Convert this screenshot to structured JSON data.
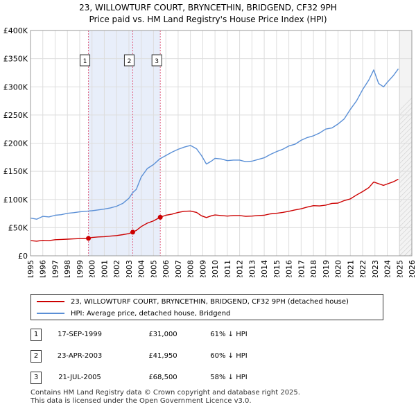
{
  "title": "23, WILLOWTURF COURT, BRYNCETHIN, BRIDGEND, CF32 9PH",
  "subtitle": "Price paid vs. HM Land Registry's House Price Index (HPI)",
  "chart_data": {
    "type": "line",
    "title": "23, WILLOWTURF COURT, BRYNCETHIN, BRIDGEND, CF32 9PH",
    "xlabel": "",
    "ylabel": "",
    "xlim": [
      1995,
      2026
    ],
    "ylim": [
      0,
      400000
    ],
    "yticks": [
      {
        "value": 0,
        "label": "£0"
      },
      {
        "value": 50000,
        "label": "£50K"
      },
      {
        "value": 100000,
        "label": "£100K"
      },
      {
        "value": 150000,
        "label": "£150K"
      },
      {
        "value": 200000,
        "label": "£200K"
      },
      {
        "value": 250000,
        "label": "£250K"
      },
      {
        "value": 300000,
        "label": "£300K"
      },
      {
        "value": 350000,
        "label": "£350K"
      },
      {
        "value": 400000,
        "label": "£400K"
      }
    ],
    "xticks": [
      "1995",
      "1996",
      "1997",
      "1998",
      "1999",
      "2000",
      "2001",
      "2002",
      "2003",
      "2004",
      "2005",
      "2006",
      "2007",
      "2008",
      "2009",
      "2010",
      "2011",
      "2012",
      "2013",
      "2014",
      "2015",
      "2016",
      "2017",
      "2018",
      "2019",
      "2020",
      "2021",
      "2022",
      "2023",
      "2024",
      "2025",
      "2026"
    ],
    "series": [
      {
        "name": "23, WILLOWTURF COURT, BRYNCETHIN, BRIDGEND, CF32 9PH (detached house)",
        "color": "#cc0000",
        "x": [
          1995.0,
          1995.5,
          1996.0,
          1996.5,
          1997.0,
          1997.5,
          1998.0,
          1998.5,
          1999.0,
          1999.5,
          1999.71,
          2000.0,
          2000.5,
          2001.0,
          2001.5,
          2002.0,
          2002.5,
          2003.0,
          2003.31,
          2003.6,
          2004.0,
          2004.5,
          2005.0,
          2005.55,
          2006.0,
          2006.5,
          2007.0,
          2007.5,
          2008.0,
          2008.5,
          2008.9,
          2009.3,
          2009.7,
          2010.0,
          2010.5,
          2011.0,
          2011.5,
          2012.0,
          2012.5,
          2013.0,
          2013.5,
          2014.0,
          2014.5,
          2015.0,
          2015.5,
          2016.0,
          2016.5,
          2017.0,
          2017.5,
          2018.0,
          2018.5,
          2019.0,
          2019.5,
          2020.0,
          2020.5,
          2021.0,
          2021.5,
          2022.0,
          2022.5,
          2022.9,
          2023.3,
          2023.7,
          2024.0,
          2024.5,
          2024.9
        ],
        "values": [
          27000,
          26000,
          27500,
          27000,
          28500,
          29000,
          29500,
          30000,
          30500,
          30800,
          31000,
          32500,
          33500,
          34000,
          35000,
          36000,
          37500,
          39500,
          41950,
          45000,
          52000,
          58000,
          62000,
          68500,
          72000,
          74000,
          77000,
          79000,
          79500,
          77000,
          71000,
          68000,
          71000,
          72500,
          71500,
          70500,
          71500,
          71500,
          70000,
          70500,
          71500,
          72000,
          74500,
          75500,
          77000,
          79000,
          81500,
          83500,
          86500,
          89000,
          88500,
          90000,
          93000,
          93500,
          98000,
          101000,
          108000,
          114000,
          121000,
          131000,
          128000,
          125000,
          127500,
          131500,
          136000
        ]
      },
      {
        "name": "HPI: Average price, detached house, Bridgend",
        "color": "#5a8fd6",
        "x": [
          1995.0,
          1995.5,
          1996.0,
          1996.5,
          1997.0,
          1997.5,
          1998.0,
          1998.5,
          1999.0,
          1999.5,
          2000.0,
          2000.5,
          2001.0,
          2001.5,
          2002.0,
          2002.5,
          2003.0,
          2003.3,
          2003.6,
          2004.0,
          2004.5,
          2005.0,
          2005.5,
          2006.0,
          2006.5,
          2007.0,
          2007.5,
          2008.0,
          2008.5,
          2008.9,
          2009.3,
          2009.7,
          2010.0,
          2010.5,
          2011.0,
          2011.5,
          2012.0,
          2012.5,
          2013.0,
          2013.5,
          2014.0,
          2014.5,
          2015.0,
          2015.5,
          2016.0,
          2016.5,
          2017.0,
          2017.5,
          2018.0,
          2018.5,
          2019.0,
          2019.5,
          2020.0,
          2020.5,
          2021.0,
          2021.5,
          2022.0,
          2022.5,
          2022.9,
          2023.3,
          2023.7,
          2024.0,
          2024.5,
          2024.9
        ],
        "values": [
          67000,
          65000,
          70000,
          69000,
          72000,
          73000,
          75500,
          76500,
          78000,
          79000,
          80000,
          81500,
          83000,
          85000,
          88000,
          93000,
          102000,
          112000,
          118000,
          140000,
          155000,
          162000,
          172000,
          178000,
          184000,
          189000,
          193000,
          196000,
          190000,
          178000,
          163000,
          168000,
          173000,
          172000,
          169000,
          170000,
          170000,
          167000,
          168000,
          171000,
          174000,
          180000,
          185000,
          189000,
          195000,
          198000,
          205000,
          210000,
          213000,
          218000,
          225000,
          227000,
          234000,
          243000,
          260000,
          275000,
          295000,
          312000,
          330000,
          306000,
          300000,
          308000,
          320000,
          332000
        ]
      }
    ],
    "sales": [
      {
        "num": "1",
        "x": 1999.71,
        "value": 31000,
        "date": "17-SEP-1999",
        "price": "£31,000",
        "hpi": "61% ↓ HPI"
      },
      {
        "num": "2",
        "x": 2003.31,
        "value": 41950,
        "date": "23-APR-2003",
        "price": "£41,950",
        "hpi": "60% ↓ HPI"
      },
      {
        "num": "3",
        "x": 2005.55,
        "value": 68500,
        "date": "21-JUL-2005",
        "price": "£68,500",
        "hpi": "58% ↓ HPI"
      }
    ],
    "future_start": 2025.0
  },
  "legend": {
    "property_label": "23, WILLOWTURF COURT, BRYNCETHIN, BRIDGEND, CF32 9PH (detached house)",
    "hpi_label": "HPI: Average price, detached house, Bridgend",
    "property_color": "#cc0000",
    "hpi_color": "#5a8fd6"
  },
  "footer": {
    "line1": "Contains HM Land Registry data © Crown copyright and database right 2025.",
    "line2": "This data is licensed under the Open Government Licence v3.0."
  }
}
